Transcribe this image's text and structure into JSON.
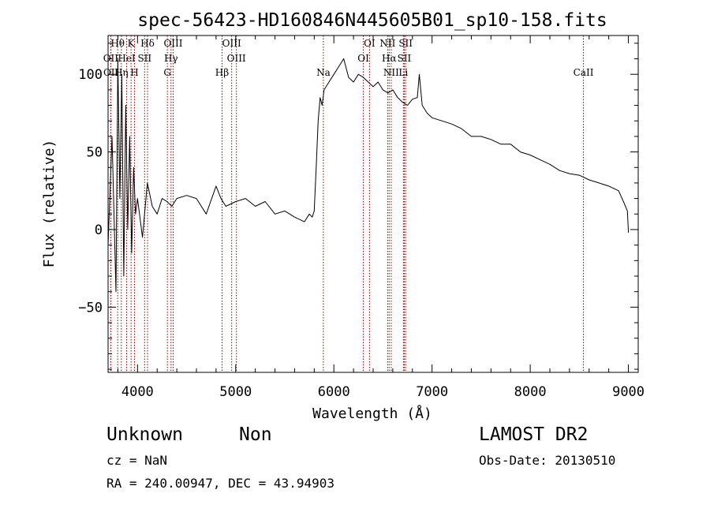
{
  "chart_data": {
    "type": "line",
    "title": "spec-56423-HD160846N445605B01_sp10-158.fits",
    "xlabel": "Wavelength (Å)",
    "ylabel": "Flux (relative)",
    "xlim": [
      3700,
      9100
    ],
    "ylim": [
      -92,
      125
    ],
    "x_ticks": [
      4000,
      5000,
      6000,
      7000,
      8000,
      9000
    ],
    "y_ticks": [
      -50,
      0,
      50,
      100
    ],
    "grid": false,
    "line_color": "#000000",
    "marker_color": "#8b0000",
    "series": [
      {
        "x": [
          3700,
          3740,
          3780,
          3800,
          3820,
          3840,
          3860,
          3880,
          3900,
          3920,
          3940,
          3960,
          3980,
          4000,
          4050,
          4100,
          4150,
          4200,
          4250,
          4300,
          4350,
          4400,
          4500,
          4600,
          4700,
          4800,
          4850,
          4900,
          5000,
          5100,
          5200,
          5300,
          5400,
          5500,
          5600,
          5700,
          5750,
          5780,
          5800,
          5820,
          5840,
          5860,
          5880,
          5900,
          5950,
          6000,
          6050,
          6100,
          6150,
          6200,
          6250,
          6300,
          6350,
          6400,
          6450,
          6500,
          6550,
          6600,
          6650,
          6700,
          6750,
          6800,
          6850,
          6870,
          6900,
          6950,
          7000,
          7100,
          7200,
          7300,
          7400,
          7500,
          7600,
          7700,
          7800,
          7900,
          8000,
          8100,
          8200,
          8300,
          8400,
          8500,
          8600,
          8700,
          8800,
          8900,
          8950,
          8990,
          9000
        ],
        "y": [
          -10,
          60,
          -40,
          110,
          20,
          100,
          -30,
          80,
          0,
          60,
          -15,
          40,
          10,
          20,
          -5,
          30,
          15,
          10,
          20,
          18,
          15,
          20,
          22,
          20,
          10,
          28,
          20,
          15,
          18,
          20,
          15,
          18,
          10,
          12,
          8,
          5,
          10,
          8,
          12,
          40,
          70,
          85,
          80,
          90,
          95,
          100,
          105,
          110,
          98,
          95,
          100,
          98,
          95,
          92,
          95,
          90,
          88,
          90,
          85,
          82,
          80,
          84,
          85,
          100,
          80,
          75,
          72,
          70,
          68,
          65,
          60,
          60,
          58,
          55,
          55,
          50,
          48,
          45,
          42,
          38,
          36,
          35,
          32,
          30,
          28,
          25,
          18,
          12,
          -2
        ]
      }
    ],
    "annotations": [
      {
        "label": "Hθ",
        "x": 3798,
        "row": 1
      },
      {
        "label": "K",
        "x": 3934,
        "row": 1
      },
      {
        "label": "Hδ",
        "x": 4102,
        "row": 1
      },
      {
        "label": "OIII",
        "x": 4363,
        "row": 1
      },
      {
        "label": "OIII",
        "x": 4959,
        "row": 1
      },
      {
        "label": "OI",
        "x": 6363,
        "row": 1
      },
      {
        "label": "NII",
        "x": 6548,
        "row": 1
      },
      {
        "label": "SII",
        "x": 6731,
        "row": 1
      },
      {
        "label": "OII",
        "x": 3727,
        "row": 2
      },
      {
        "label": "HeI",
        "x": 3889,
        "row": 2
      },
      {
        "label": "SII",
        "x": 4072,
        "row": 2
      },
      {
        "label": "Hγ",
        "x": 4341,
        "row": 2
      },
      {
        "label": "OIII",
        "x": 5007,
        "row": 2
      },
      {
        "label": "OI",
        "x": 6300,
        "row": 2
      },
      {
        "label": "Hα",
        "x": 6563,
        "row": 2
      },
      {
        "label": "SII",
        "x": 6717,
        "row": 2
      },
      {
        "label": "OII",
        "x": 3729,
        "row": 3
      },
      {
        "label": "Hη",
        "x": 3835,
        "row": 3
      },
      {
        "label": "H",
        "x": 3969,
        "row": 3
      },
      {
        "label": "G",
        "x": 4304,
        "row": 3
      },
      {
        "label": "Hβ",
        "x": 4861,
        "row": 3
      },
      {
        "label": "Na",
        "x": 5893,
        "row": 3
      },
      {
        "label": "NII",
        "x": 6584,
        "row": 3
      },
      {
        "label": "Li",
        "x": 6708,
        "row": 3
      },
      {
        "label": "CaII",
        "x": 8542,
        "row": 3
      }
    ],
    "marker_lines": [
      3727,
      3729,
      3798,
      3835,
      3889,
      3934,
      3969,
      4072,
      4102,
      4304,
      4341,
      4363,
      4861,
      4959,
      5007,
      5893,
      6300,
      6363,
      6548,
      6563,
      6584,
      6708,
      6717,
      6731,
      8542
    ]
  },
  "footer": {
    "object_class": "Unknown",
    "object_subclass": "Non",
    "survey": "LAMOST DR2",
    "cz": "cz = NaN",
    "obs_date": "Obs-Date: 20130510",
    "coords": "RA = 240.00947, DEC =  43.94903"
  }
}
